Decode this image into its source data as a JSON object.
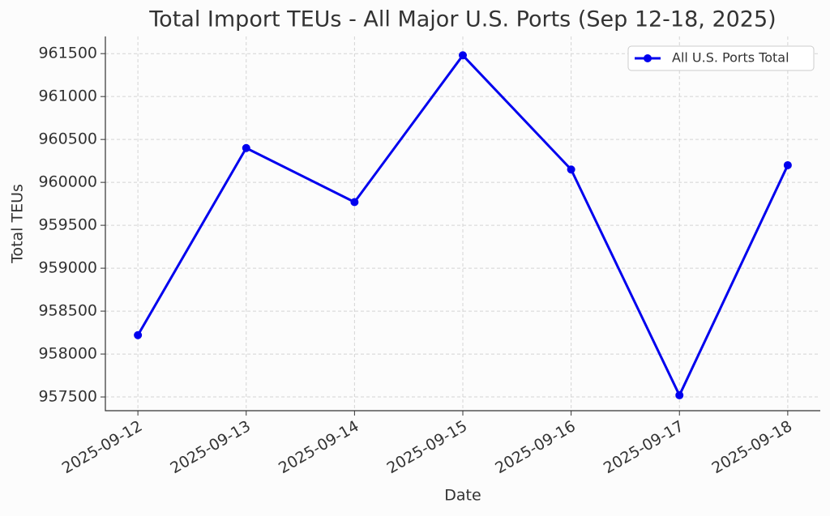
{
  "chart_data": {
    "type": "line",
    "title": "Total Import TEUs - All Major U.S. Ports (Sep 12-18, 2025)",
    "x_label": "Date",
    "y_label": "Total TEUs",
    "categories": [
      "2025-09-12",
      "2025-09-13",
      "2025-09-14",
      "2025-09-15",
      "2025-09-16",
      "2025-09-17",
      "2025-09-18"
    ],
    "series": [
      {
        "name": "All U.S. Ports Total",
        "color": "#0000ee",
        "values": [
          958220,
          960400,
          959770,
          961480,
          960150,
          957520,
          960200
        ]
      }
    ],
    "ylim": [
      957340,
      961700
    ],
    "yticks": [
      957500,
      958000,
      958500,
      959000,
      959500,
      960000,
      960500,
      961000,
      961500
    ],
    "grid": true,
    "legend": "upper right"
  }
}
